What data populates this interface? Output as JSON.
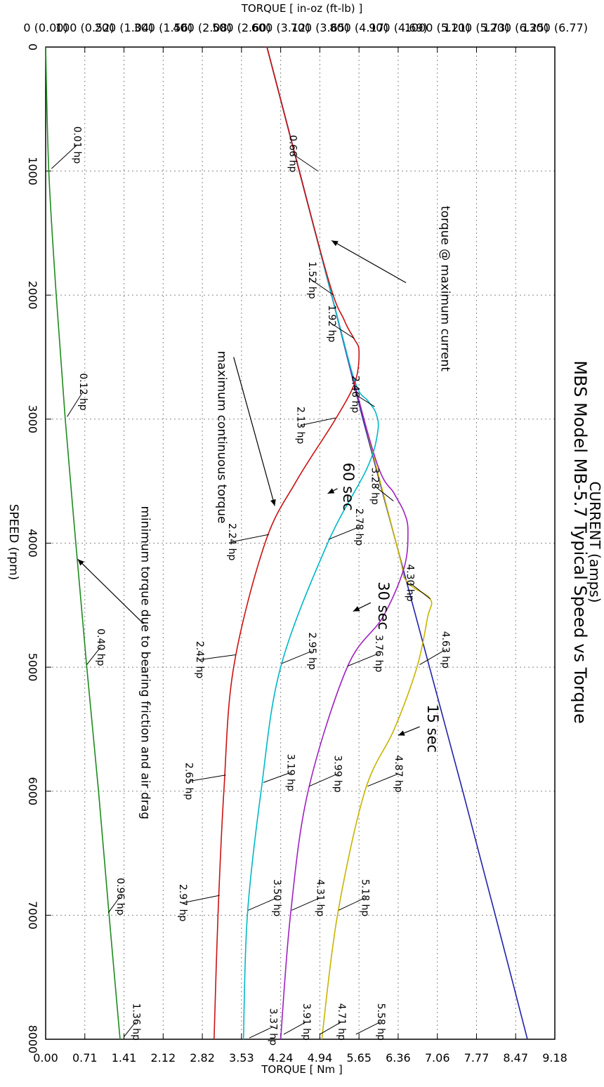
{
  "chart_data": {
    "type": "line",
    "title": "MBS Model MB-5.7 Typical Speed vs Torque",
    "subtitle": "CURRENT (amps)",
    "xlabel": "SPEED (rpm)",
    "ylabel": "TORQUE [ in-oz (ft-lb) ]",
    "ylabel_right": "TORQUE [ Nm ]",
    "xlim": [
      0,
      8000
    ],
    "ylim": [
      0,
      1300
    ],
    "grid": true,
    "x_ticks": [
      "0",
      "1000",
      "2000",
      "3000",
      "4000",
      "5000",
      "6000",
      "7000",
      "8000"
    ],
    "y_ticks": [
      "0 (0.00)",
      "100 (0.52)",
      "200 (1.04)",
      "300 (1.56)",
      "400 (2.08)",
      "500 (2.60)",
      "600 (3.12)",
      "700 (3.65)",
      "800 (4.17)",
      "900 (4.69)",
      "1000 (5.21)",
      "1100 (5.73)",
      "1200 (6.25)",
      "1300 (6.77)"
    ],
    "y2_ticks": [
      "0.00",
      "0.71",
      "1.41",
      "2.12",
      "2.82",
      "3.53",
      "4.24",
      "4.94",
      "5.65",
      "6.36",
      "7.06",
      "7.77",
      "8.47",
      "9.18"
    ],
    "series": [
      {
        "key": "maxcur",
        "color": "#2222aa",
        "x": [
          0,
          1000,
          2000,
          3000,
          4000,
          5000,
          6000,
          7000,
          8000
        ],
        "y": [
          565,
          648,
          730,
          810,
          895,
          980,
          1065,
          1148,
          1230
        ]
      },
      {
        "key": "s15",
        "color": "#c8b400",
        "x": [
          0,
          2000,
          4000,
          4300,
          4450,
          4600,
          5000,
          5500,
          6000,
          7000,
          8000
        ],
        "y": [
          565,
          730,
          895,
          920,
          982,
          975,
          948,
          890,
          815,
          745,
          705
        ]
      },
      {
        "key": "s30",
        "color": "#a020c0",
        "x": [
          0,
          2000,
          3300,
          3600,
          3750,
          3900,
          4200,
          4600,
          5000,
          6000,
          7000,
          8000
        ],
        "y": [
          565,
          730,
          840,
          890,
          915,
          925,
          915,
          860,
          770,
          670,
          625,
          600
        ]
      },
      {
        "key": "s60",
        "color": "#00b8c8",
        "x": [
          0,
          2000,
          2700,
          2850,
          2950,
          3100,
          3400,
          4000,
          5000,
          6000,
          7000,
          8000
        ],
        "y": [
          565,
          730,
          790,
          822,
          843,
          848,
          820,
          720,
          600,
          550,
          515,
          505
        ]
      },
      {
        "key": "cont",
        "color": "#cc1111",
        "x": [
          0,
          1800,
          2200,
          2350,
          2450,
          2700,
          3000,
          3500,
          4000,
          5000,
          6000,
          7000,
          8000
        ],
        "y": [
          565,
          715,
          762,
          787,
          800,
          790,
          740,
          640,
          560,
          480,
          455,
          440,
          430
        ]
      },
      {
        "key": "min",
        "color": "#1e8a1e",
        "x": [
          0,
          1000,
          2000,
          3000,
          4000,
          5000,
          6000,
          7000,
          8000
        ],
        "y": [
          0,
          8,
          27,
          50,
          77,
          105,
          135,
          162,
          190
        ]
      }
    ],
    "annotations": [
      {
        "text": "0.66 hp",
        "x": 860,
        "y": 630,
        "lx": 1000,
        "ly": 695
      },
      {
        "text": "1.52 hp",
        "x": 1880,
        "y": 680,
        "lx": 2000,
        "ly": 735
      },
      {
        "text": "1.92 hp",
        "x": 2230,
        "y": 730,
        "lx": 2350,
        "ly": 788
      },
      {
        "text": "2.46 hp",
        "x": 2800,
        "y": 790,
        "lx": 2900,
        "ly": 840
      },
      {
        "text": "3.28 hp",
        "x": 3540,
        "y": 840,
        "lx": 3660,
        "ly": 888
      },
      {
        "text": "4.30 hp",
        "x": 4320,
        "y": 930,
        "lx": 4450,
        "ly": 982
      },
      {
        "text": "2.13 hp",
        "x": 3050,
        "y": 650,
        "lx": 2990,
        "ly": 740
      },
      {
        "text": "2.24 hp",
        "x": 3990,
        "y": 475,
        "lx": 3930,
        "ly": 570
      },
      {
        "text": "2.42 hp",
        "x": 4940,
        "y": 393,
        "lx": 4900,
        "ly": 485
      },
      {
        "text": "2.65 hp",
        "x": 5920,
        "y": 365,
        "lx": 5870,
        "ly": 460
      },
      {
        "text": "2.97 hp",
        "x": 6900,
        "y": 350,
        "lx": 6840,
        "ly": 444
      },
      {
        "text": "2.78 hp",
        "x": 3870,
        "y": 800,
        "lx": 3970,
        "ly": 722
      },
      {
        "text": "2.95 hp",
        "x": 4870,
        "y": 680,
        "lx": 4970,
        "ly": 603
      },
      {
        "text": "3.19 hp",
        "x": 5850,
        "y": 625,
        "lx": 5930,
        "ly": 556
      },
      {
        "text": "3.50 hp",
        "x": 6860,
        "y": 590,
        "lx": 6960,
        "ly": 517
      },
      {
        "text": "3.37 hp",
        "x": 7900,
        "y": 580,
        "lx": 7990,
        "ly": 520
      },
      {
        "text": "3.76 hp",
        "x": 4890,
        "y": 850,
        "lx": 4990,
        "ly": 772
      },
      {
        "text": "3.99 hp",
        "x": 5860,
        "y": 745,
        "lx": 5960,
        "ly": 673
      },
      {
        "text": "4.31 hp",
        "x": 6860,
        "y": 700,
        "lx": 6960,
        "ly": 628
      },
      {
        "text": "3.91 hp",
        "x": 7860,
        "y": 665,
        "lx": 7960,
        "ly": 608
      },
      {
        "text": "4.63 hp",
        "x": 4860,
        "y": 1020,
        "lx": 4980,
        "ly": 955
      },
      {
        "text": "4.87 hp",
        "x": 5860,
        "y": 900,
        "lx": 5960,
        "ly": 822
      },
      {
        "text": "5.18 hp",
        "x": 6860,
        "y": 815,
        "lx": 6960,
        "ly": 748
      },
      {
        "text": "4.71 hp",
        "x": 7860,
        "y": 755,
        "lx": 7960,
        "ly": 700
      },
      {
        "text": "5.58 hp",
        "x": 7860,
        "y": 855,
        "lx": 7960,
        "ly": 792
      },
      {
        "text": "0.01 hp",
        "x": 790,
        "y": 80,
        "lx": 980,
        "ly": 15
      },
      {
        "text": "0.12 hp",
        "x": 2780,
        "y": 95,
        "lx": 2980,
        "ly": 55
      },
      {
        "text": "0.40 hp",
        "x": 4840,
        "y": 140,
        "lx": 4980,
        "ly": 105
      },
      {
        "text": "0.96 hp",
        "x": 6850,
        "y": 190,
        "lx": 6980,
        "ly": 160
      },
      {
        "text": "1.36 hp",
        "x": 7860,
        "y": 230,
        "lx": 7980,
        "ly": 200
      }
    ],
    "notes": [
      {
        "text": "torque @ maximum current",
        "x": 1280,
        "y": 1010,
        "size": 17,
        "ax": 1560,
        "ay": 730,
        "atx": 1900,
        "aty": 920
      },
      {
        "text": "maximum continuous torque",
        "x": 2450,
        "y": 440,
        "size": 17,
        "ax": 3700,
        "ay": 585,
        "atx": 2500,
        "aty": 480
      },
      {
        "text": "minimum torque due to bearing friction and air drag",
        "x": 3700,
        "y": 245,
        "size": 17,
        "ax": 4130,
        "ay": 82,
        "atx": 4650,
        "aty": 250
      },
      {
        "text": "15 sec",
        "x": 5300,
        "y": 975,
        "size": 21,
        "ax": 5550,
        "ay": 900,
        "atx": 5480,
        "aty": 955
      },
      {
        "text": "30 sec",
        "x": 4310,
        "y": 850,
        "size": 21,
        "ax": 4550,
        "ay": 785,
        "atx": 4480,
        "aty": 830
      },
      {
        "text": "60 sec",
        "x": 3350,
        "y": 760,
        "size": 21,
        "ax": 3600,
        "ay": 720,
        "atx": 3560,
        "aty": 745
      }
    ]
  }
}
